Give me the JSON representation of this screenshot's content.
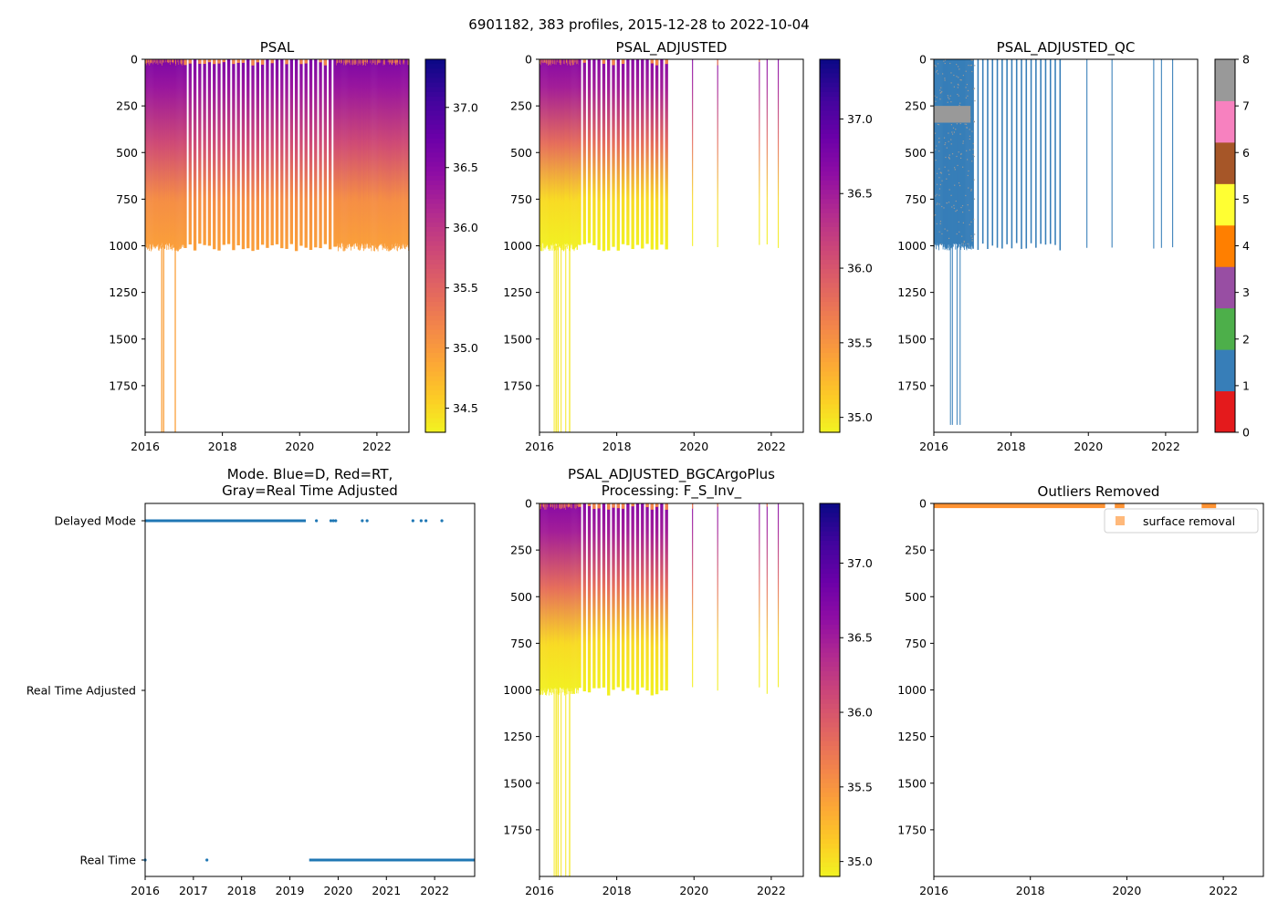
{
  "figure": {
    "suptitle": "6901182, 383 profiles, 2015-12-28 to 2022-10-04"
  },
  "colors": {
    "plasma": [
      "#0d0887",
      "#41049d",
      "#6a00a8",
      "#8f0da4",
      "#b12a90",
      "#cc4778",
      "#e16462",
      "#f2844b",
      "#fca636",
      "#fcce25",
      "#f0f921"
    ],
    "qc": [
      "#e41a1c",
      "#377eb8",
      "#4daf4a",
      "#984ea3",
      "#ff7f00",
      "#ffff33",
      "#a65628",
      "#f781bf",
      "#999999"
    ],
    "mode_points": "#1f77b4",
    "outlier": "#ff7f0e"
  },
  "chart_data": [
    {
      "id": "psal",
      "type": "heatmap",
      "title": "PSAL",
      "xlim": [
        2016.0,
        2022.83
      ],
      "ylim": [
        2000,
        0
      ],
      "xticks": [
        "2016",
        "2018",
        "2020",
        "2022"
      ],
      "yticks": [
        "0",
        "250",
        "500",
        "750",
        "1000",
        "1250",
        "1500",
        "1750"
      ],
      "colorbar": {
        "range": [
          34.3,
          37.4
        ],
        "ticks": [
          "34.5",
          "35.0",
          "35.5",
          "36.0",
          "36.5",
          "37.0"
        ]
      }
    },
    {
      "id": "psal_adjusted",
      "type": "heatmap",
      "title": "PSAL_ADJUSTED",
      "xlim": [
        2016.0,
        2022.83
      ],
      "ylim": [
        2000,
        0
      ],
      "xticks": [
        "2016",
        "2018",
        "2020",
        "2022"
      ],
      "yticks": [
        "0",
        "250",
        "500",
        "750",
        "1000",
        "1250",
        "1500",
        "1750"
      ],
      "colorbar": {
        "range": [
          34.9,
          37.4
        ],
        "ticks": [
          "35.0",
          "35.5",
          "36.0",
          "36.5",
          "37.0"
        ]
      }
    },
    {
      "id": "psal_adjusted_qc",
      "type": "heatmap",
      "title": "PSAL_ADJUSTED_QC",
      "xlim": [
        2016.0,
        2022.83
      ],
      "ylim": [
        2000,
        0
      ],
      "xticks": [
        "2016",
        "2018",
        "2020",
        "2022"
      ],
      "yticks": [
        "0",
        "250",
        "500",
        "750",
        "1000",
        "1250",
        "1500",
        "1750"
      ],
      "colorbar": {
        "range": [
          0,
          8
        ],
        "ticks": [
          "0",
          "1",
          "2",
          "3",
          "4",
          "5",
          "6",
          "7",
          "8"
        ]
      }
    },
    {
      "id": "mode",
      "type": "scatter",
      "title": "Mode. Blue=D, Red=RT,",
      "title_line2": "Gray=Real Time Adjusted",
      "xlim": [
        2016.0,
        2022.83
      ],
      "xticks": [
        "2016",
        "2017",
        "2018",
        "2019",
        "2020",
        "2021",
        "2022"
      ],
      "yticks": [
        "Delayed Mode",
        "Real Time Adjusted",
        "Real Time"
      ],
      "series": [
        {
          "name": "Delayed Mode",
          "segments": [
            [
              2016.0,
              2019.33
            ]
          ],
          "points": [
            2019.55,
            2019.85,
            2019.9,
            2019.95,
            2020.5,
            2020.6,
            2021.55,
            2021.72,
            2021.82,
            2022.15
          ]
        },
        {
          "name": "Real Time",
          "segments": [
            [
              2019.4,
              2022.83
            ]
          ],
          "points": [
            2016.0,
            2017.28
          ]
        }
      ]
    },
    {
      "id": "psal_bgc",
      "type": "heatmap",
      "title": "PSAL_ADJUSTED_BGCArgoPlus",
      "title_line2": "Processing: F_S_Inv_",
      "xlim": [
        2016.0,
        2022.83
      ],
      "ylim": [
        2000,
        0
      ],
      "xticks": [
        "2016",
        "2018",
        "2020",
        "2022"
      ],
      "yticks": [
        "0",
        "250",
        "500",
        "750",
        "1000",
        "1250",
        "1500",
        "1750"
      ],
      "colorbar": {
        "range": [
          34.9,
          37.4
        ],
        "ticks": [
          "35.0",
          "35.5",
          "36.0",
          "36.5",
          "37.0"
        ]
      }
    },
    {
      "id": "outliers",
      "type": "scatter",
      "title": "Outliers Removed",
      "xlim": [
        2016.0,
        2022.83
      ],
      "ylim": [
        2000,
        0
      ],
      "xticks": [
        "2016",
        "2018",
        "2020",
        "2022"
      ],
      "yticks": [
        "0",
        "250",
        "500",
        "750",
        "1000",
        "1250",
        "1500",
        "1750"
      ],
      "legend": {
        "label": "surface removal",
        "placement": "top-right"
      },
      "segments": [
        [
          2016.0,
          2019.55
        ],
        [
          2019.75,
          2019.95
        ],
        [
          2021.55,
          2021.85
        ]
      ]
    }
  ]
}
